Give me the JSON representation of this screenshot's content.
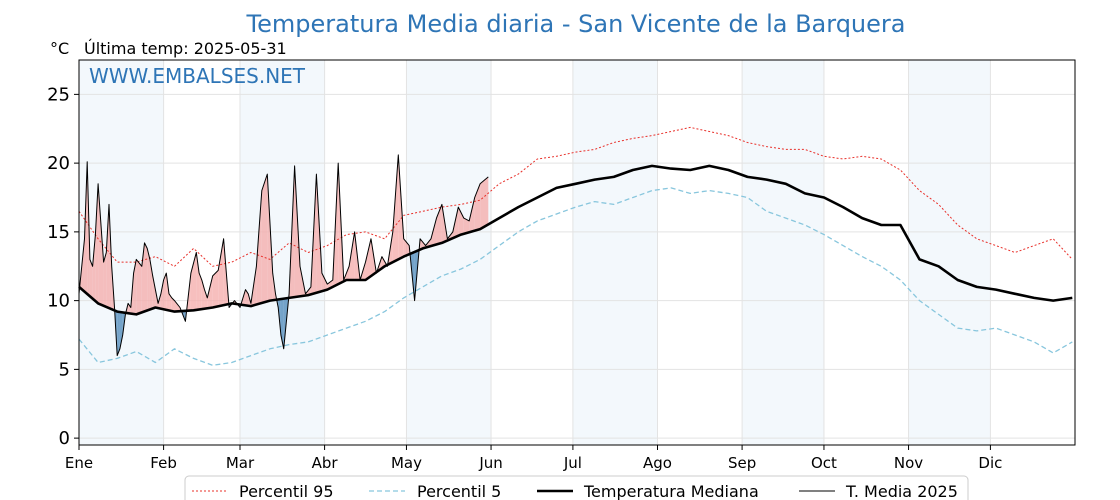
{
  "chart_data": {
    "type": "line",
    "title": "Temperatura Media diaria - San Vicente de la Barquera",
    "unit_label": "°C",
    "last_reading": "Última temp: 2025-05-31",
    "watermark": "WWW.EMBALSES.NET",
    "ylim": [
      -0.5,
      27.5
    ],
    "y_ticks": [
      0,
      5,
      10,
      15,
      20,
      25
    ],
    "xlim": [
      1,
      366
    ],
    "month_ticks": [
      {
        "label": "Ene",
        "day": 1
      },
      {
        "label": "Feb",
        "day": 32
      },
      {
        "label": "Mar",
        "day": 60
      },
      {
        "label": "Abr",
        "day": 91
      },
      {
        "label": "May",
        "day": 121
      },
      {
        "label": "Jun",
        "day": 152
      },
      {
        "label": "Jul",
        "day": 182
      },
      {
        "label": "Ago",
        "day": 213
      },
      {
        "label": "Sep",
        "day": 244
      },
      {
        "label": "Oct",
        "day": 274
      },
      {
        "label": "Nov",
        "day": 305
      },
      {
        "label": "Dic",
        "day": 335
      }
    ],
    "grid": true,
    "legend_position": "bottom",
    "series": [
      {
        "name": "Percentil 95",
        "color": "#e8302a",
        "style": "dotted",
        "x": [
          1,
          8,
          15,
          22,
          29,
          36,
          43,
          50,
          57,
          64,
          71,
          78,
          85,
          92,
          99,
          106,
          113,
          120,
          127,
          134,
          141,
          148,
          155,
          162,
          169,
          176,
          183,
          190,
          197,
          204,
          211,
          218,
          225,
          232,
          239,
          246,
          253,
          260,
          267,
          274,
          281,
          288,
          295,
          302,
          309,
          316,
          323,
          330,
          337,
          344,
          351,
          358,
          365
        ],
        "values": [
          16.5,
          14.5,
          12.8,
          12.8,
          13.2,
          12.5,
          13.8,
          12.5,
          12.8,
          13.5,
          13.0,
          14.2,
          13.5,
          14.0,
          14.8,
          15.0,
          14.5,
          16.2,
          16.5,
          16.8,
          17.0,
          17.3,
          18.5,
          19.2,
          20.3,
          20.5,
          20.8,
          21.0,
          21.5,
          21.8,
          22.0,
          22.3,
          22.6,
          22.3,
          22.0,
          21.5,
          21.2,
          21.0,
          21.0,
          20.5,
          20.3,
          20.5,
          20.3,
          19.5,
          18.0,
          17.0,
          15.5,
          14.5,
          14.0,
          13.5,
          14.0,
          14.5,
          13.0
        ]
      },
      {
        "name": "Percentil 5",
        "color": "#88c6dd",
        "style": "dashed",
        "x": [
          1,
          8,
          15,
          22,
          29,
          36,
          43,
          50,
          57,
          64,
          71,
          78,
          85,
          92,
          99,
          106,
          113,
          120,
          127,
          134,
          141,
          148,
          155,
          162,
          169,
          176,
          183,
          190,
          197,
          204,
          211,
          218,
          225,
          232,
          239,
          246,
          253,
          260,
          267,
          274,
          281,
          288,
          295,
          302,
          309,
          316,
          323,
          330,
          337,
          344,
          351,
          358,
          365
        ],
        "values": [
          7.2,
          5.5,
          5.8,
          6.3,
          5.5,
          6.5,
          5.8,
          5.3,
          5.5,
          6.0,
          6.5,
          6.8,
          7.0,
          7.5,
          8.0,
          8.5,
          9.2,
          10.2,
          11.0,
          11.8,
          12.3,
          13.0,
          14.0,
          15.0,
          15.8,
          16.3,
          16.8,
          17.2,
          17.0,
          17.5,
          18.0,
          18.2,
          17.8,
          18.0,
          17.8,
          17.5,
          16.5,
          16.0,
          15.5,
          14.8,
          14.0,
          13.2,
          12.5,
          11.5,
          10.0,
          9.0,
          8.0,
          7.8,
          8.0,
          7.5,
          7.0,
          6.2,
          7.0
        ]
      },
      {
        "name": "Temperatura Mediana",
        "color": "#000000",
        "style": "solid-thick",
        "x": [
          1,
          8,
          15,
          22,
          29,
          36,
          43,
          50,
          57,
          64,
          71,
          78,
          85,
          92,
          99,
          106,
          113,
          120,
          127,
          134,
          141,
          148,
          155,
          162,
          169,
          176,
          183,
          190,
          197,
          204,
          211,
          218,
          225,
          232,
          239,
          246,
          253,
          260,
          267,
          274,
          281,
          288,
          295,
          302,
          309,
          316,
          323,
          330,
          337,
          344,
          351,
          358,
          365
        ],
        "values": [
          11.0,
          9.8,
          9.2,
          9.0,
          9.5,
          9.2,
          9.3,
          9.5,
          9.8,
          9.6,
          10.0,
          10.2,
          10.4,
          10.8,
          11.5,
          11.5,
          12.5,
          13.2,
          13.8,
          14.2,
          14.8,
          15.2,
          16.0,
          16.8,
          17.5,
          18.2,
          18.5,
          18.8,
          19.0,
          19.5,
          19.8,
          19.6,
          19.5,
          19.8,
          19.5,
          19.0,
          18.8,
          18.5,
          17.8,
          17.5,
          16.8,
          16.0,
          15.5,
          15.5,
          13.0,
          12.5,
          11.5,
          11.0,
          10.8,
          10.5,
          10.2,
          10.0,
          10.2
        ]
      },
      {
        "name": "T. Media 2025",
        "color": "#000000",
        "style": "solid-thin",
        "x": [
          1,
          3,
          4,
          5,
          6,
          7,
          8,
          10,
          11,
          12,
          13,
          14,
          15,
          16,
          17,
          18,
          19,
          20,
          21,
          22,
          24,
          25,
          26,
          27,
          28,
          29,
          30,
          31,
          32,
          33,
          34,
          35,
          36,
          38,
          40,
          42,
          44,
          45,
          46,
          47,
          48,
          50,
          52,
          54,
          56,
          58,
          60,
          62,
          63,
          64,
          66,
          68,
          70,
          72,
          73,
          74,
          75,
          76,
          78,
          80,
          82,
          84,
          86,
          88,
          90,
          92,
          94,
          96,
          98,
          100,
          102,
          104,
          106,
          108,
          110,
          112,
          114,
          116,
          118,
          120,
          122,
          124,
          126,
          128,
          130,
          132,
          134,
          136,
          138,
          140,
          142,
          144,
          146,
          148,
          151
        ],
        "values": [
          10.5,
          14.5,
          20.1,
          13.0,
          12.5,
          14.8,
          18.5,
          12.8,
          13.5,
          17.0,
          12.5,
          9.5,
          6.0,
          6.5,
          7.5,
          9.0,
          9.8,
          9.5,
          12.0,
          13.0,
          12.5,
          14.2,
          13.8,
          13.0,
          11.8,
          10.8,
          9.8,
          10.5,
          11.5,
          12.0,
          10.5,
          10.2,
          10.0,
          9.5,
          8.5,
          12.0,
          13.5,
          12.0,
          11.5,
          10.8,
          10.2,
          11.8,
          12.2,
          14.5,
          9.5,
          10.0,
          9.5,
          10.8,
          10.5,
          9.8,
          12.5,
          18.0,
          19.2,
          12.0,
          10.5,
          9.5,
          7.5,
          6.5,
          10.5,
          19.8,
          12.5,
          10.5,
          11.0,
          19.2,
          12.0,
          11.2,
          11.5,
          20.0,
          11.5,
          12.5,
          15.0,
          11.5,
          12.8,
          14.5,
          12.0,
          13.2,
          12.5,
          15.0,
          20.6,
          14.5,
          14.0,
          10.0,
          14.5,
          14.0,
          14.5,
          16.0,
          17.0,
          14.5,
          15.0,
          16.8,
          16.0,
          15.8,
          17.5,
          18.5,
          19.0
        ]
      }
    ]
  }
}
